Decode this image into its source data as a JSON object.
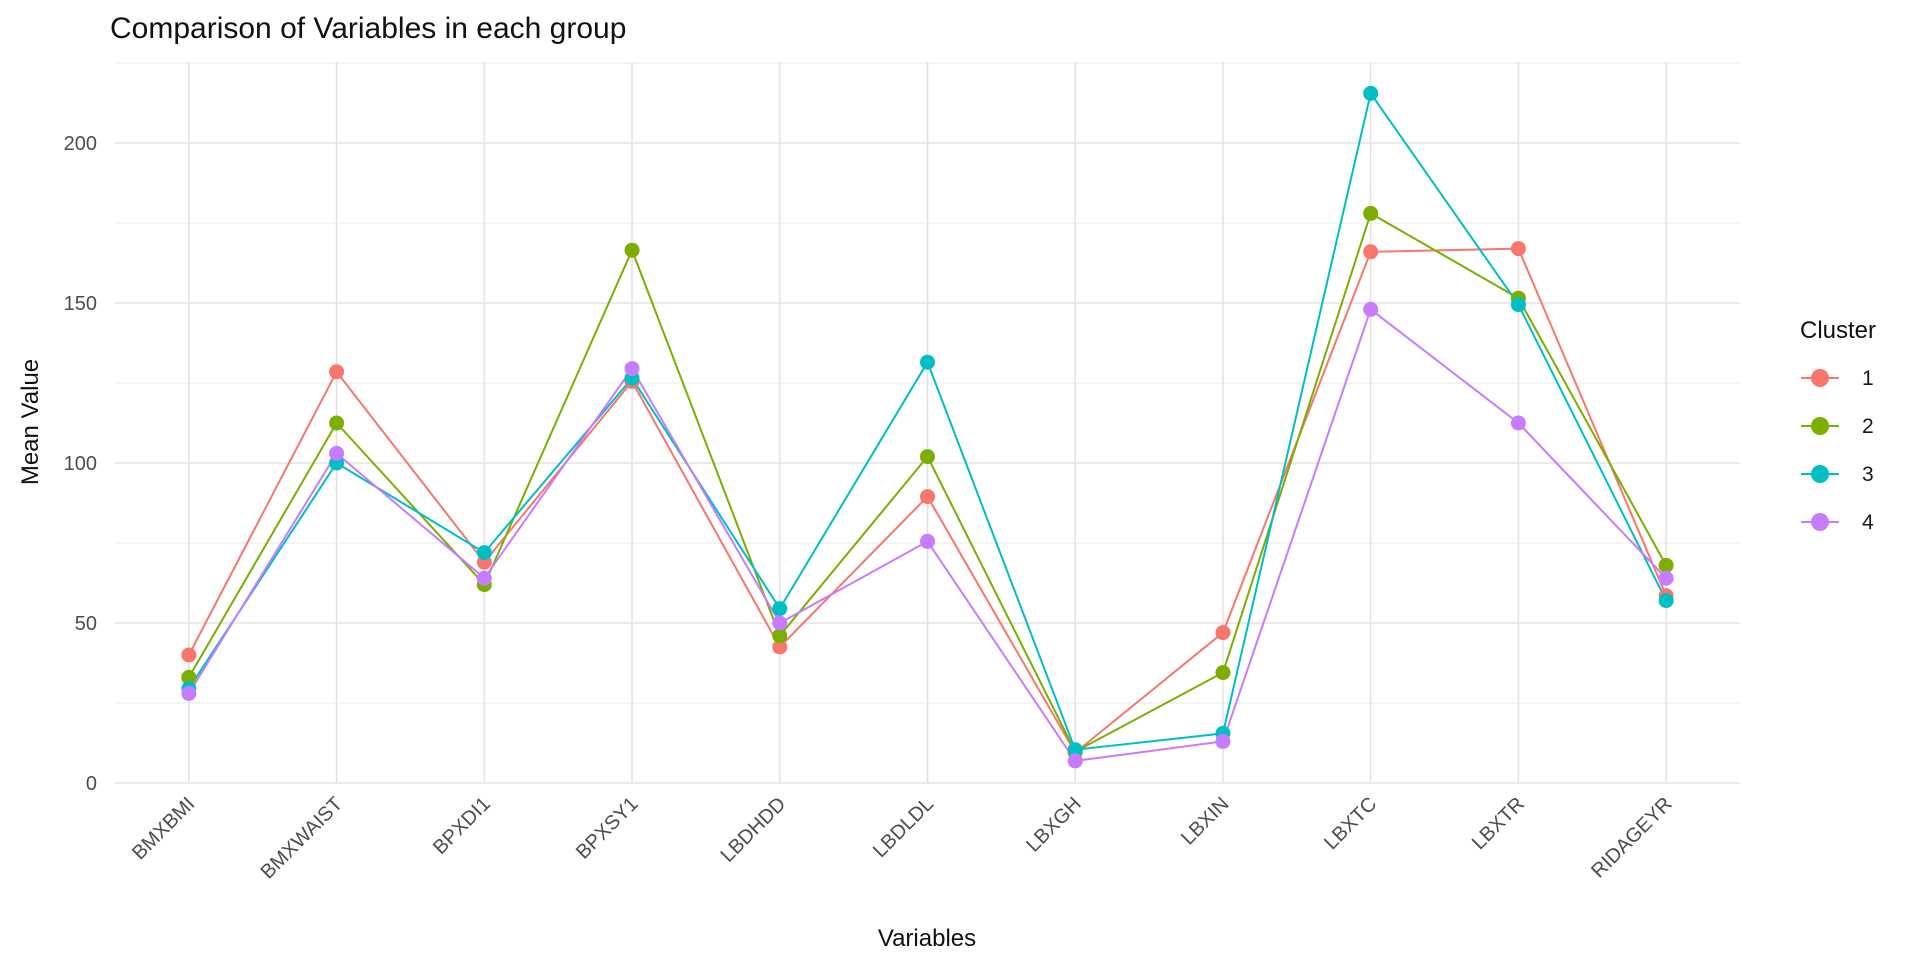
{
  "title": "Comparison of Variables in each group",
  "chart_data": {
    "type": "line",
    "title": "Comparison of Variables in each group",
    "xlabel": "Variables",
    "ylabel": "Mean Value",
    "ylim": [
      0,
      225
    ],
    "yticks": [
      0,
      50,
      100,
      150,
      200
    ],
    "yminor": [
      25,
      75,
      125,
      175,
      225
    ],
    "grid": "horizontal major+minor, vertical major per category, light gray on white",
    "legend_title": "Cluster",
    "legend_position": "right",
    "categories": [
      "BMXBMI",
      "BMXWAIST",
      "BPXDI1",
      "BPXSY1",
      "LBDHDD",
      "LBDLDL",
      "LBXGH",
      "LBXIN",
      "LBXTC",
      "LBXTR",
      "RIDAGEYR"
    ],
    "series": [
      {
        "name": "1",
        "color": "#F8766D",
        "values": [
          40,
          128.5,
          69,
          125.5,
          42.5,
          89.5,
          9.5,
          47,
          166,
          167,
          58.5
        ]
      },
      {
        "name": "2",
        "color": "#7CAE00",
        "values": [
          33,
          112.5,
          62,
          166.5,
          46,
          102,
          9.8,
          34.5,
          178,
          151.5,
          68
        ]
      },
      {
        "name": "3",
        "color": "#00BFC4",
        "values": [
          29.5,
          100,
          72,
          126.5,
          54.5,
          131.5,
          10.4,
          15.5,
          215.5,
          149.5,
          57
        ]
      },
      {
        "name": "4",
        "color": "#C77CFF",
        "values": [
          28,
          103,
          64,
          129.5,
          50,
          75.5,
          6.9,
          13,
          148,
          112.5,
          64
        ]
      }
    ],
    "grid_major_color": "#e3e3e3",
    "grid_minor_color": "#f1f1f1"
  }
}
